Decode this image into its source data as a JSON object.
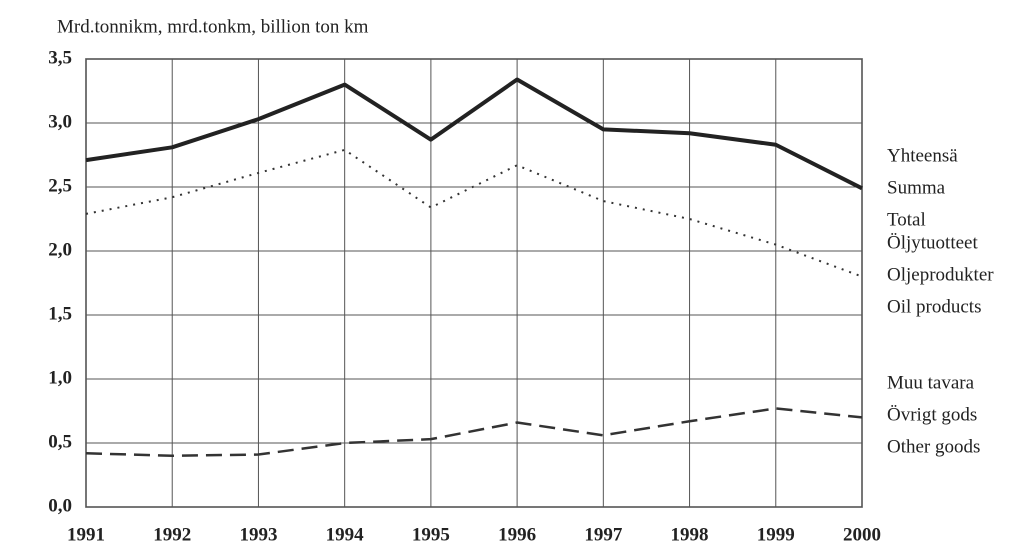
{
  "chart_data": {
    "type": "line",
    "y_axis_label": "Mrd.tonnikm, mrd.tonkm, billion ton km",
    "categories": [
      "1991",
      "1992",
      "1993",
      "1994",
      "1995",
      "1996",
      "1997",
      "1998",
      "1999",
      "2000"
    ],
    "series": [
      {
        "name": [
          "Yhteensä",
          "Summa",
          "Total"
        ],
        "color": "#222222",
        "line_style": "solid",
        "values": [
          2.71,
          2.81,
          3.03,
          3.3,
          2.87,
          3.34,
          2.95,
          2.92,
          2.83,
          2.49
        ]
      },
      {
        "name": [
          "Öljytuotteet",
          "Oljeprodukter",
          "Oil products"
        ],
        "color": "#333333",
        "line_style": "dotted",
        "values": [
          2.29,
          2.42,
          2.61,
          2.79,
          2.34,
          2.67,
          2.39,
          2.25,
          2.05,
          1.8
        ]
      },
      {
        "name": [
          "Muu tavara",
          "Övrigt gods",
          "Other goods"
        ],
        "color": "#333333",
        "line_style": "dashed",
        "values": [
          0.42,
          0.4,
          0.41,
          0.5,
          0.53,
          0.66,
          0.56,
          0.67,
          0.77,
          0.7
        ]
      }
    ],
    "ylim": [
      0,
      3.5
    ],
    "yticks": [
      {
        "value": 0,
        "label": "0,0"
      },
      {
        "value": 0.5,
        "label": "0,5"
      },
      {
        "value": 1,
        "label": "1,0"
      },
      {
        "value": 1.5,
        "label": "1,5"
      },
      {
        "value": 2,
        "label": "2,0"
      },
      {
        "value": 2.5,
        "label": "2,5"
      },
      {
        "value": 3,
        "label": "3,0"
      },
      {
        "value": 3.5,
        "label": "3,5"
      }
    ],
    "grid": true
  }
}
